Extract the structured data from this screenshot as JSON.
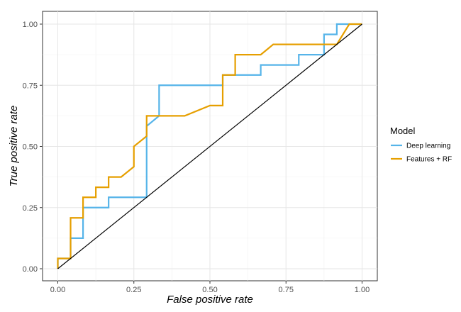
{
  "chart_data": {
    "type": "line",
    "xlabel": "False positive rate",
    "ylabel": "True positive rate",
    "xlim": [
      0,
      1
    ],
    "ylim": [
      0,
      1
    ],
    "x_ticks": [
      0,
      0.25,
      0.5,
      0.75,
      1
    ],
    "y_ticks": [
      0,
      0.25,
      0.5,
      0.75,
      1
    ],
    "x_tick_labels": [
      "0.00",
      "0.25",
      "0.50",
      "0.75",
      "1.00"
    ],
    "y_tick_labels": [
      "0.00",
      "0.25",
      "0.50",
      "0.75",
      "1.00"
    ],
    "grid": true,
    "legend": {
      "title": "Model",
      "placement": "right"
    },
    "series": [
      {
        "name": "Deep learning",
        "color": "#56b4e9",
        "x": [
          0,
          0,
          0.042,
          0.042,
          0.083,
          0.083,
          0.167,
          0.167,
          0.292,
          0.292,
          0.333,
          0.333,
          0.542,
          0.542,
          0.667,
          0.667,
          0.792,
          0.792,
          0.875,
          0.875,
          0.917,
          0.917,
          1
        ],
        "y": [
          0,
          0.042,
          0.042,
          0.125,
          0.125,
          0.25,
          0.25,
          0.292,
          0.292,
          0.583,
          0.625,
          0.75,
          0.75,
          0.792,
          0.792,
          0.833,
          0.833,
          0.875,
          0.875,
          0.958,
          0.958,
          1,
          1
        ]
      },
      {
        "name": "Features + RF",
        "color": "#e69f00",
        "x": [
          0,
          0,
          0.042,
          0.042,
          0.083,
          0.083,
          0.125,
          0.125,
          0.167,
          0.167,
          0.208,
          0.25,
          0.25,
          0.292,
          0.292,
          0.333,
          0.417,
          0.5,
          0.542,
          0.542,
          0.583,
          0.583,
          0.667,
          0.708,
          0.917,
          0.958,
          1
        ],
        "y": [
          0,
          0.042,
          0.042,
          0.208,
          0.208,
          0.292,
          0.292,
          0.333,
          0.333,
          0.375,
          0.375,
          0.417,
          0.5,
          0.542,
          0.625,
          0.625,
          0.625,
          0.667,
          0.667,
          0.792,
          0.792,
          0.875,
          0.875,
          0.917,
          0.917,
          1,
          1
        ]
      },
      {
        "name": "",
        "color": "#000000",
        "x": [
          0,
          1
        ],
        "y": [
          0,
          1
        ]
      }
    ]
  }
}
